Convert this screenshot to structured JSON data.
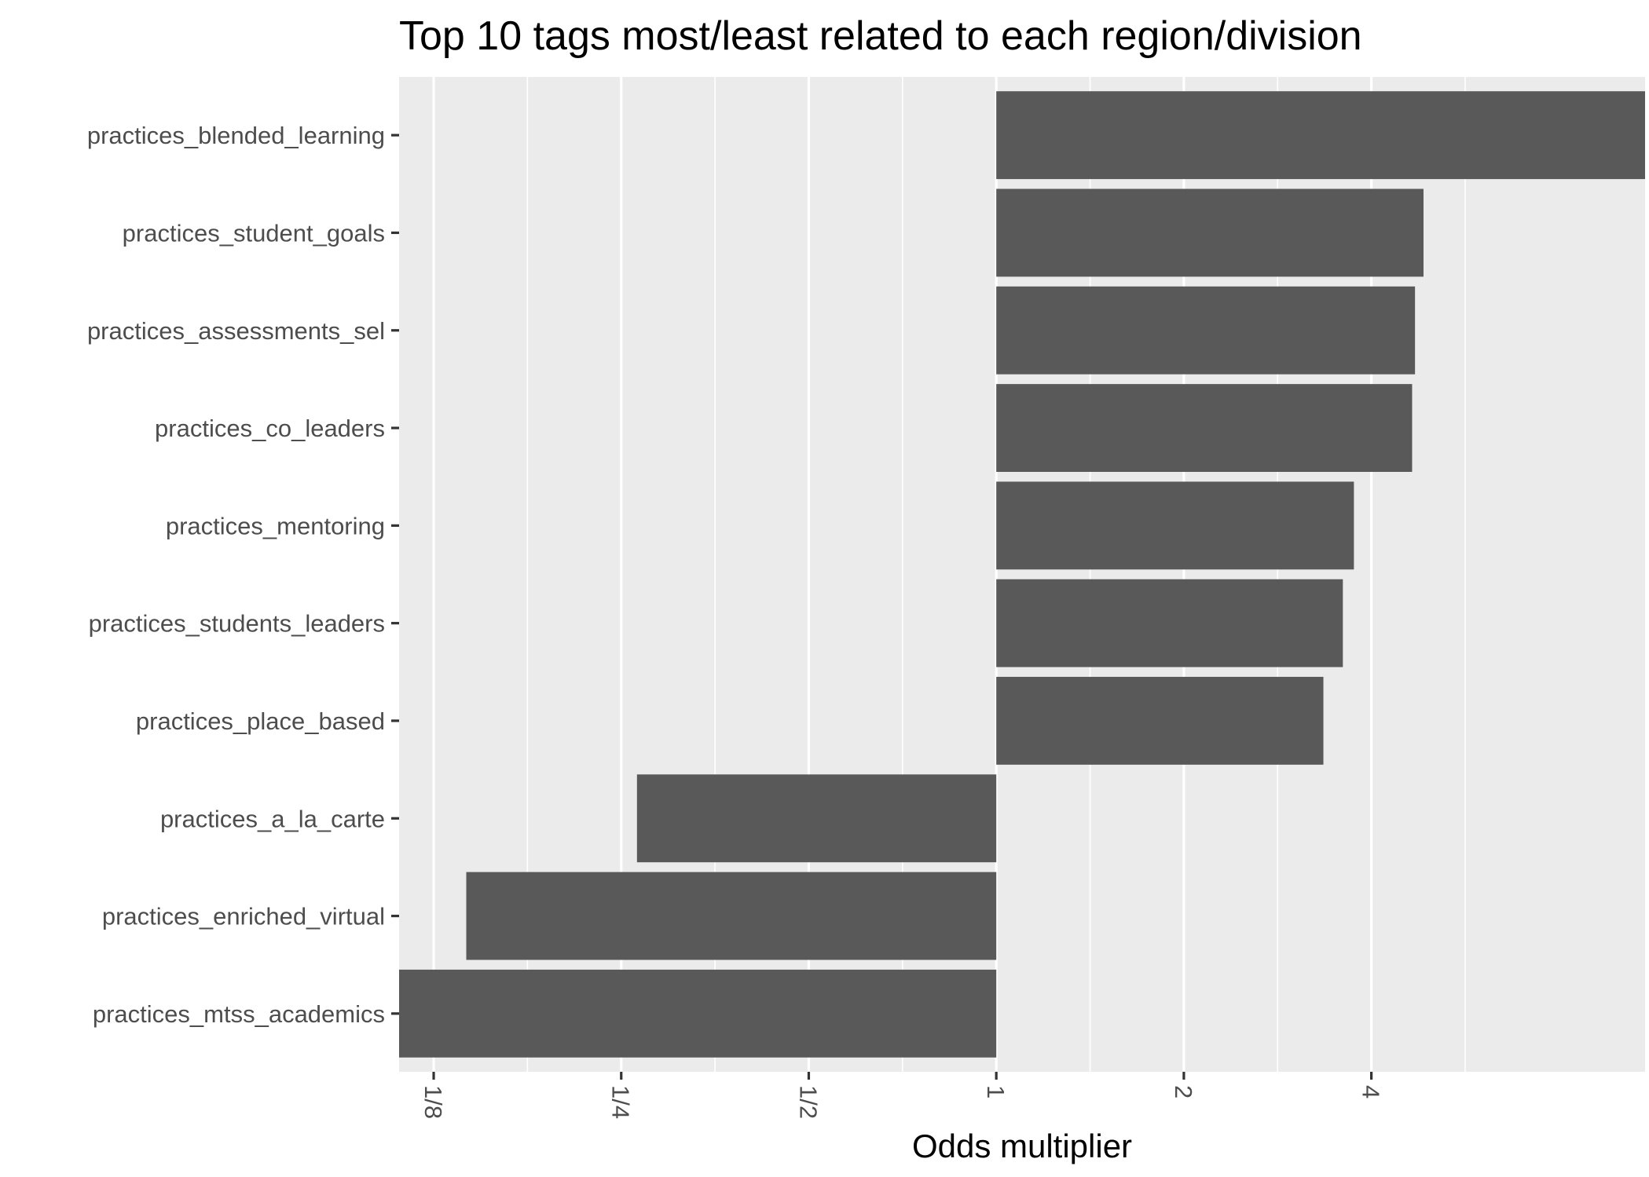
{
  "chart_data": {
    "type": "bar",
    "orientation": "horizontal",
    "title": "Top 10 tags most/least related to each region/division",
    "xlabel": "Odds multiplier",
    "ylabel": "",
    "x_scale": "log2",
    "xlim": [
      0.11,
      11.0
    ],
    "x_ticks": [
      "1/8",
      "1/4",
      "1/2",
      "1",
      "2",
      "4"
    ],
    "x_tick_values": [
      0.125,
      0.25,
      0.5,
      1,
      2,
      4
    ],
    "baseline": 1,
    "grid": true,
    "background_color": "#ebebeb",
    "bar_color": "#595959",
    "categories": [
      "practices_blended_learning",
      "practices_student_goals",
      "practices_assessments_sel",
      "practices_co_leaders",
      "practices_mentoring",
      "practices_students_leaders",
      "practices_place_based",
      "practices_a_la_carte",
      "practices_enriched_virtual",
      "practices_mtss_academics"
    ],
    "values": [
      11.0,
      4.85,
      4.7,
      4.65,
      3.75,
      3.6,
      3.35,
      0.265,
      0.141,
      0.11
    ]
  }
}
